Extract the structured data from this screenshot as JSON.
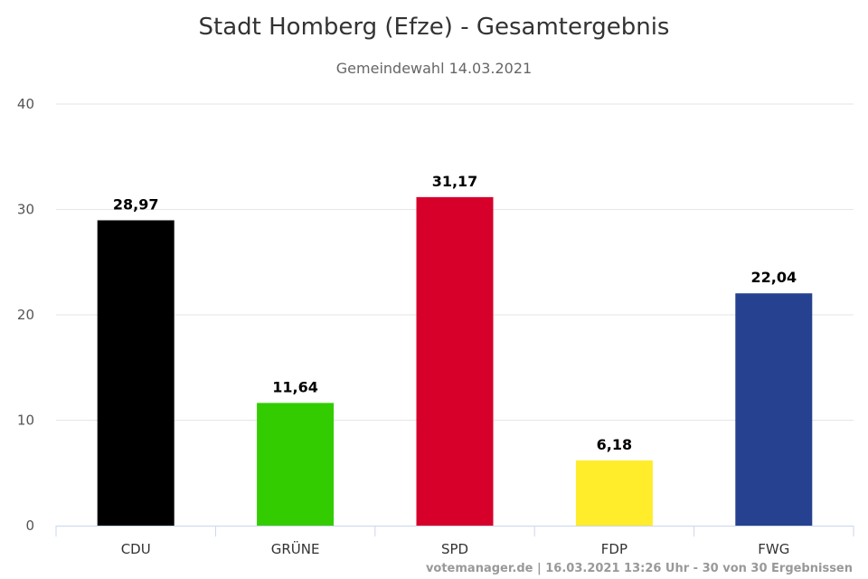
{
  "chart_data": {
    "type": "bar",
    "title": "Stadt Homberg (Efze) - Gesamtergebnis",
    "subtitle": "Gemeindewahl 14.03.2021",
    "categories": [
      "CDU",
      "GRÜNE",
      "SPD",
      "FDP",
      "FWG"
    ],
    "values": [
      28.97,
      11.64,
      31.17,
      6.18,
      22.04
    ],
    "data_labels": [
      "28,97",
      "11,64",
      "31,17",
      "6,18",
      "22,04"
    ],
    "colors": [
      "#000000",
      "#33cc00",
      "#d6002b",
      "#ffed2b",
      "#26418f"
    ],
    "ylim": [
      0,
      40
    ],
    "yticks": [
      0,
      10,
      20,
      30,
      40
    ],
    "grid": true,
    "credits": "votemanager.de | 16.03.2021 13:26 Uhr - 30 von 30 Ergebnissen"
  }
}
